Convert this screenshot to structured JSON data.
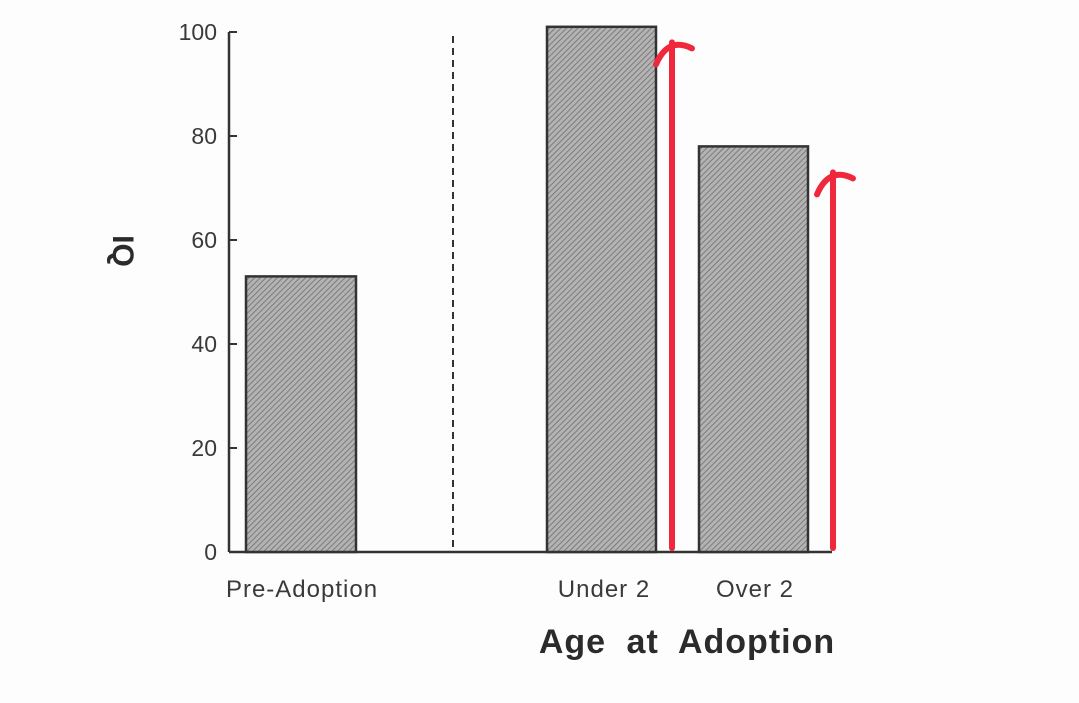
{
  "chart_data": {
    "type": "bar",
    "title": "",
    "ylabel": "IQ",
    "xlabel": "Age at Adoption",
    "ylim": [
      0,
      100
    ],
    "yticks": [
      0,
      20,
      40,
      60,
      80,
      100
    ],
    "categories": [
      "Pre-Adoption",
      "Under 2",
      "Over 2"
    ],
    "values": [
      53,
      101,
      78
    ],
    "grid": false,
    "legend": "none",
    "divider": "dashed vertical line between Pre-Adoption and Under 2",
    "annotations": [
      {
        "type": "arrow",
        "color": "#f0283c",
        "target": "Under 2",
        "from_value": 0,
        "to_value": 98
      },
      {
        "type": "arrow",
        "color": "#f0283c",
        "target": "Over 2",
        "from_value": 0,
        "to_value": 73
      }
    ]
  },
  "colors": {
    "bar_fill": "#a6a6a6",
    "bar_stroke": "#333333",
    "axis": "#333333",
    "arrow": "#f0283c"
  }
}
